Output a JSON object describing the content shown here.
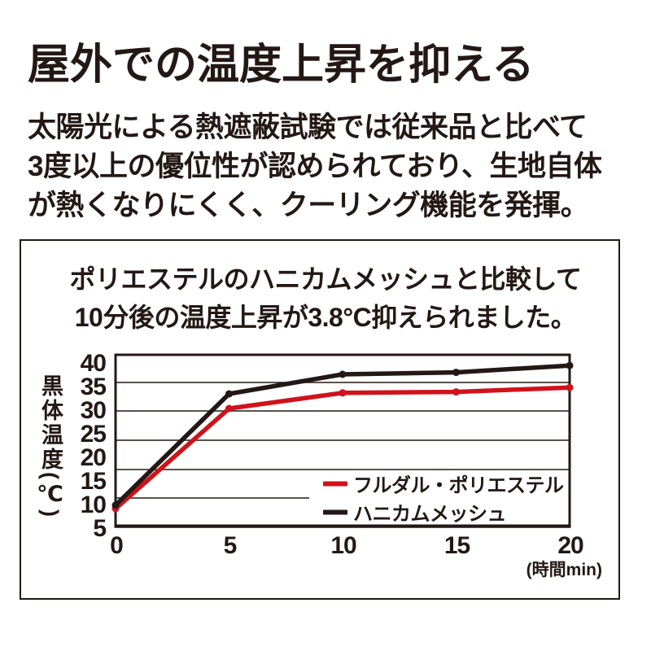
{
  "page": {
    "background": "#ffffff",
    "text_color": "#231815",
    "accent_red": "#d0121a"
  },
  "title": "屋外での温度上昇を抑える",
  "body_lines": [
    "太陽光による熱遮蔽試験では従来品と比べて",
    "3度以上の優位性が認められており、生地自体",
    "が熱くなりにくく、クーリング機能を発揮。"
  ],
  "panel": {
    "heading_lines": [
      "ポリエステルのハニカムメッシュと比較して",
      "10分後の温度上昇が3.8°C抑えられました。"
    ]
  },
  "chart_data": {
    "type": "line",
    "title": "",
    "x": [
      0,
      5,
      10,
      15,
      20
    ],
    "xticks": [
      "0",
      "5",
      "10",
      "15",
      "20"
    ],
    "yticks": [
      "40",
      "35",
      "30",
      "25",
      "20",
      "15",
      "10",
      "5"
    ],
    "xlabel": "(時間min)",
    "ylabel": "黒体温度(℃)",
    "ylim": [
      5,
      40
    ],
    "xlim": [
      0,
      20
    ],
    "grid": true,
    "legend_position": "inside-bottom-right",
    "series": [
      {
        "name": "フルダル・ポリエステル",
        "color": "#d0121a",
        "values": [
          8.5,
          29,
          32.2,
          32.4,
          33.3
        ]
      },
      {
        "name": "ハニカムメッシュ",
        "color": "#231815",
        "values": [
          9.2,
          32,
          36.0,
          36.4,
          37.8
        ]
      }
    ]
  }
}
